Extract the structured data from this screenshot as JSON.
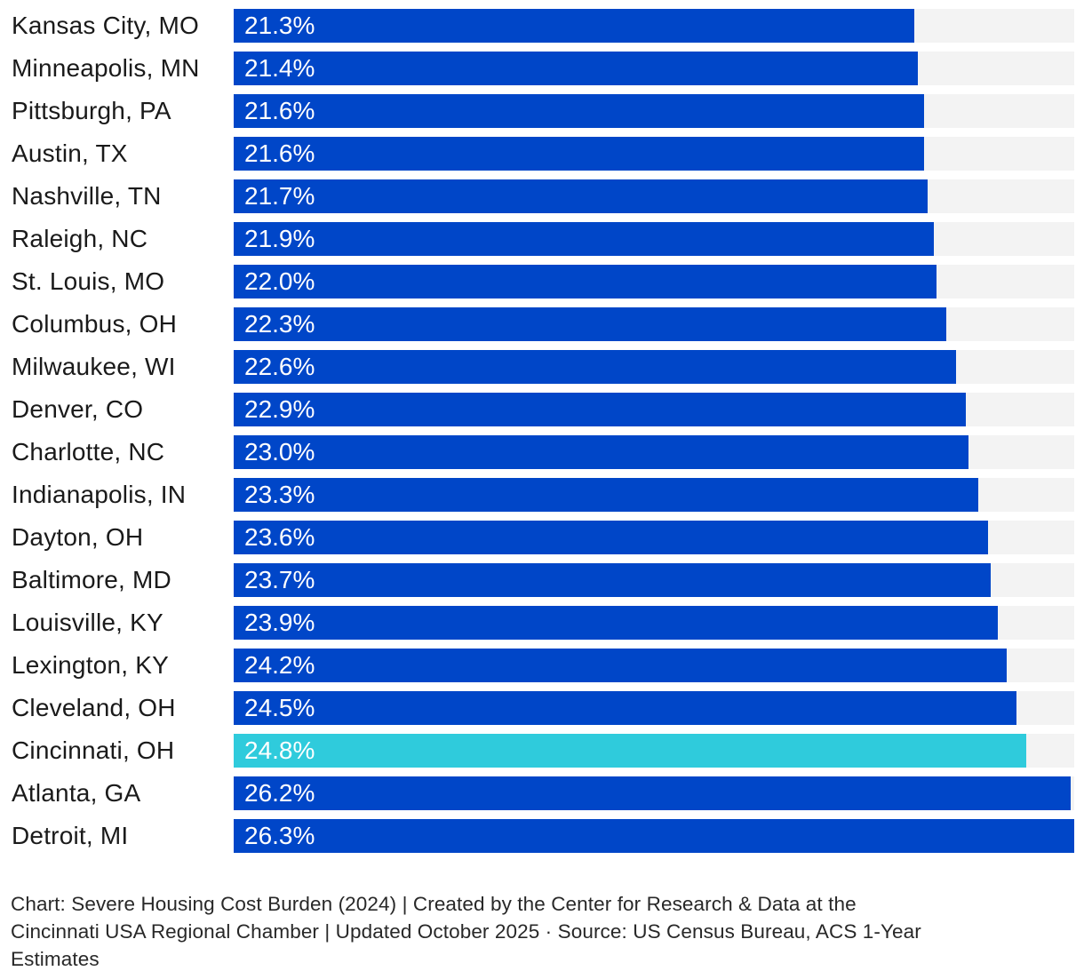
{
  "chart_data": {
    "type": "bar",
    "orientation": "horizontal",
    "title": "Severe Housing Cost Burden (2024)",
    "categories": [
      "Kansas City, MO",
      "Minneapolis, MN",
      "Pittsburgh, PA",
      "Austin, TX",
      "Nashville, TN",
      "Raleigh, NC",
      "St. Louis, MO",
      "Columbus, OH",
      "Milwaukee, WI",
      "Denver, CO",
      "Charlotte, NC",
      "Indianapolis, IN",
      "Dayton, OH",
      "Baltimore, MD",
      "Louisville, KY",
      "Lexington, KY",
      "Cleveland, OH",
      "Cincinnati, OH",
      "Atlanta, GA",
      "Detroit, MI"
    ],
    "values": [
      21.3,
      21.4,
      21.6,
      21.6,
      21.7,
      21.9,
      22.0,
      22.3,
      22.6,
      22.9,
      23.0,
      23.3,
      23.6,
      23.7,
      23.9,
      24.2,
      24.5,
      24.8,
      26.2,
      26.3
    ],
    "value_labels": [
      "21.3%",
      "21.4%",
      "21.6%",
      "21.6%",
      "21.7%",
      "21.9%",
      "22.0%",
      "22.3%",
      "22.6%",
      "22.9%",
      "23.0%",
      "23.3%",
      "23.6%",
      "23.7%",
      "23.9%",
      "24.2%",
      "24.5%",
      "24.8%",
      "26.2%",
      "26.3%"
    ],
    "highlight_category": "Cincinnati, OH",
    "xlim": [
      0,
      26.3
    ],
    "xlabel": "",
    "ylabel": "",
    "grid": false,
    "legend": "none"
  },
  "colors": {
    "bar": "#0046C8",
    "highlight": "#2FCBDC",
    "track": "#F3F3F3",
    "label_text": "#1A1A1A",
    "value_text": "#FFFFFF",
    "footer_text": "#282828",
    "background": "#FFFFFF"
  },
  "footer": {
    "lines": [
      "Chart: Severe Housing Cost Burden (2024) | Created by the Center for Research & Data at the",
      "Cincinnati USA Regional Chamber | Updated October 2025 · Source: US Census Bureau, ACS 1-Year",
      "Estimates"
    ]
  }
}
